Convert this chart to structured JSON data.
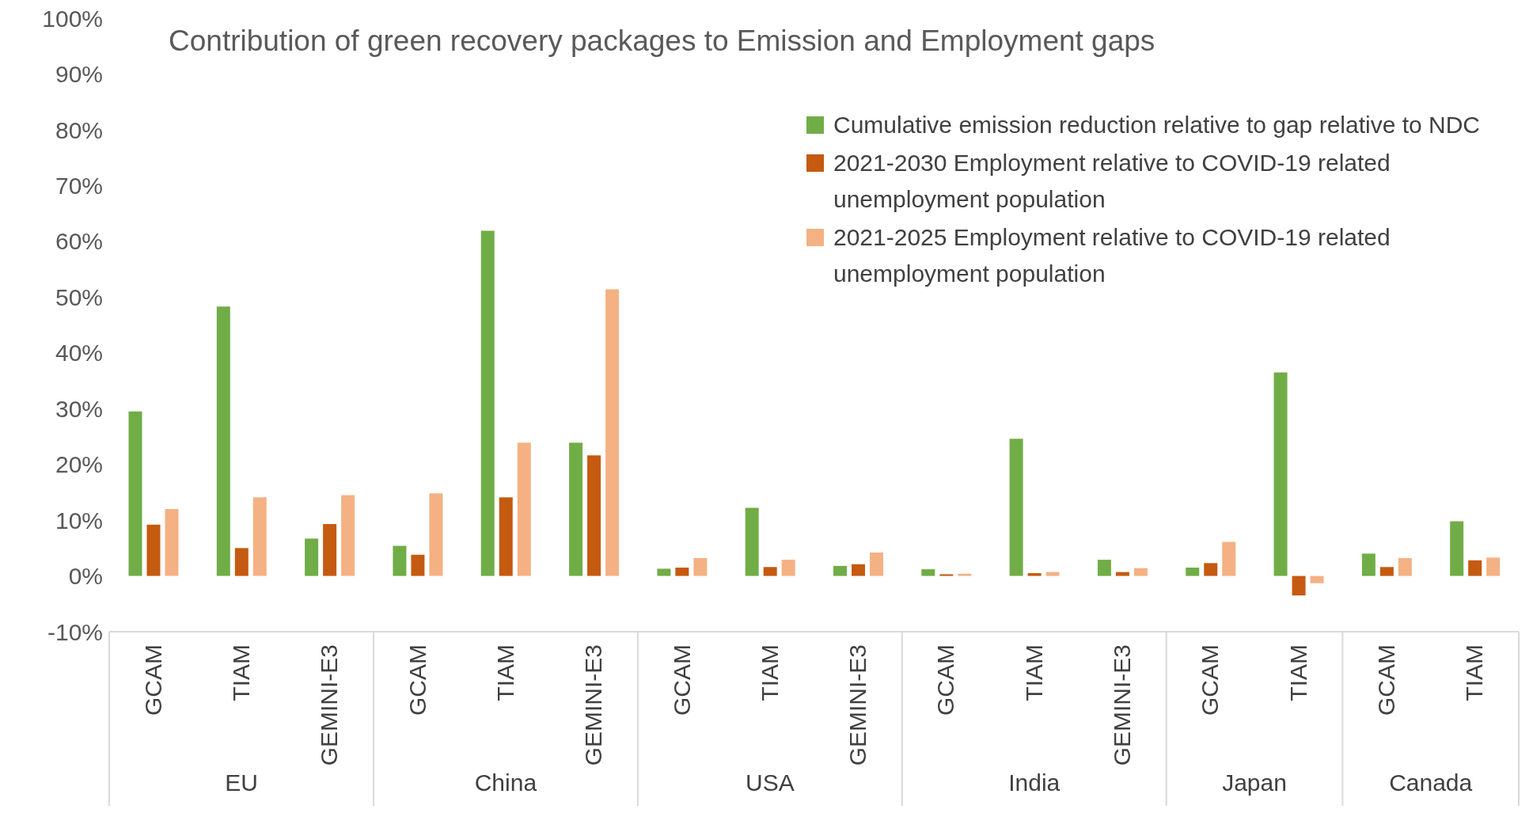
{
  "chart_data": {
    "type": "bar",
    "title": "Contribution of green recovery packages to Emission and Employment gaps",
    "categories": [
      "GCAM",
      "TIAM",
      "GEMINI-E3",
      "GCAM",
      "TIAM",
      "GEMINI-E3",
      "GCAM",
      "TIAM",
      "GEMINI-E3",
      "GCAM",
      "TIAM",
      "GEMINI-E3",
      "GCAM",
      "TIAM",
      "GCAM",
      "TIAM"
    ],
    "annotations": [
      "EU",
      "China",
      "USA",
      "India",
      "Japan",
      "Canada"
    ],
    "series": [
      {
        "name": "Cumulative emission reduction relative to gap relative to NDC",
        "color": "#70ad47",
        "values": [
          29.5,
          48.3,
          6.7,
          5.4,
          61.9,
          23.9,
          1.3,
          12.2,
          1.8,
          1.2,
          24.6,
          2.9,
          1.5,
          36.5,
          4.0,
          9.8
        ]
      },
      {
        "name": "2021-2030 Employment relative to COVID-19 related unemployment population",
        "color": "#c55a11",
        "values": [
          9.2,
          5.0,
          9.3,
          3.8,
          14.1,
          21.6,
          1.5,
          1.6,
          2.1,
          0.3,
          0.5,
          0.7,
          2.3,
          -3.5,
          1.6,
          2.8
        ]
      },
      {
        "name": "2021-2025 Employment relative to COVID-19 related unemployment population",
        "color": "#f4b183",
        "values": [
          12.0,
          14.1,
          14.5,
          14.8,
          23.9,
          51.4,
          3.2,
          2.9,
          4.2,
          0.4,
          0.7,
          1.4,
          6.1,
          -1.3,
          3.2,
          3.3
        ]
      }
    ],
    "ylim": [
      -10,
      100
    ],
    "yticks": [
      {
        "value": -10,
        "label": "-10%"
      },
      {
        "value": 0,
        "label": "0%"
      },
      {
        "value": 10,
        "label": "10%"
      },
      {
        "value": 20,
        "label": "20%"
      },
      {
        "value": 30,
        "label": "30%"
      },
      {
        "value": 40,
        "label": "40%"
      },
      {
        "value": 50,
        "label": "50%"
      },
      {
        "value": 60,
        "label": "60%"
      },
      {
        "value": 70,
        "label": "70%"
      },
      {
        "value": 80,
        "label": "80%"
      },
      {
        "value": 90,
        "label": "90%"
      },
      {
        "value": 100,
        "label": "100%"
      }
    ],
    "grid": false,
    "legend": "top right"
  }
}
